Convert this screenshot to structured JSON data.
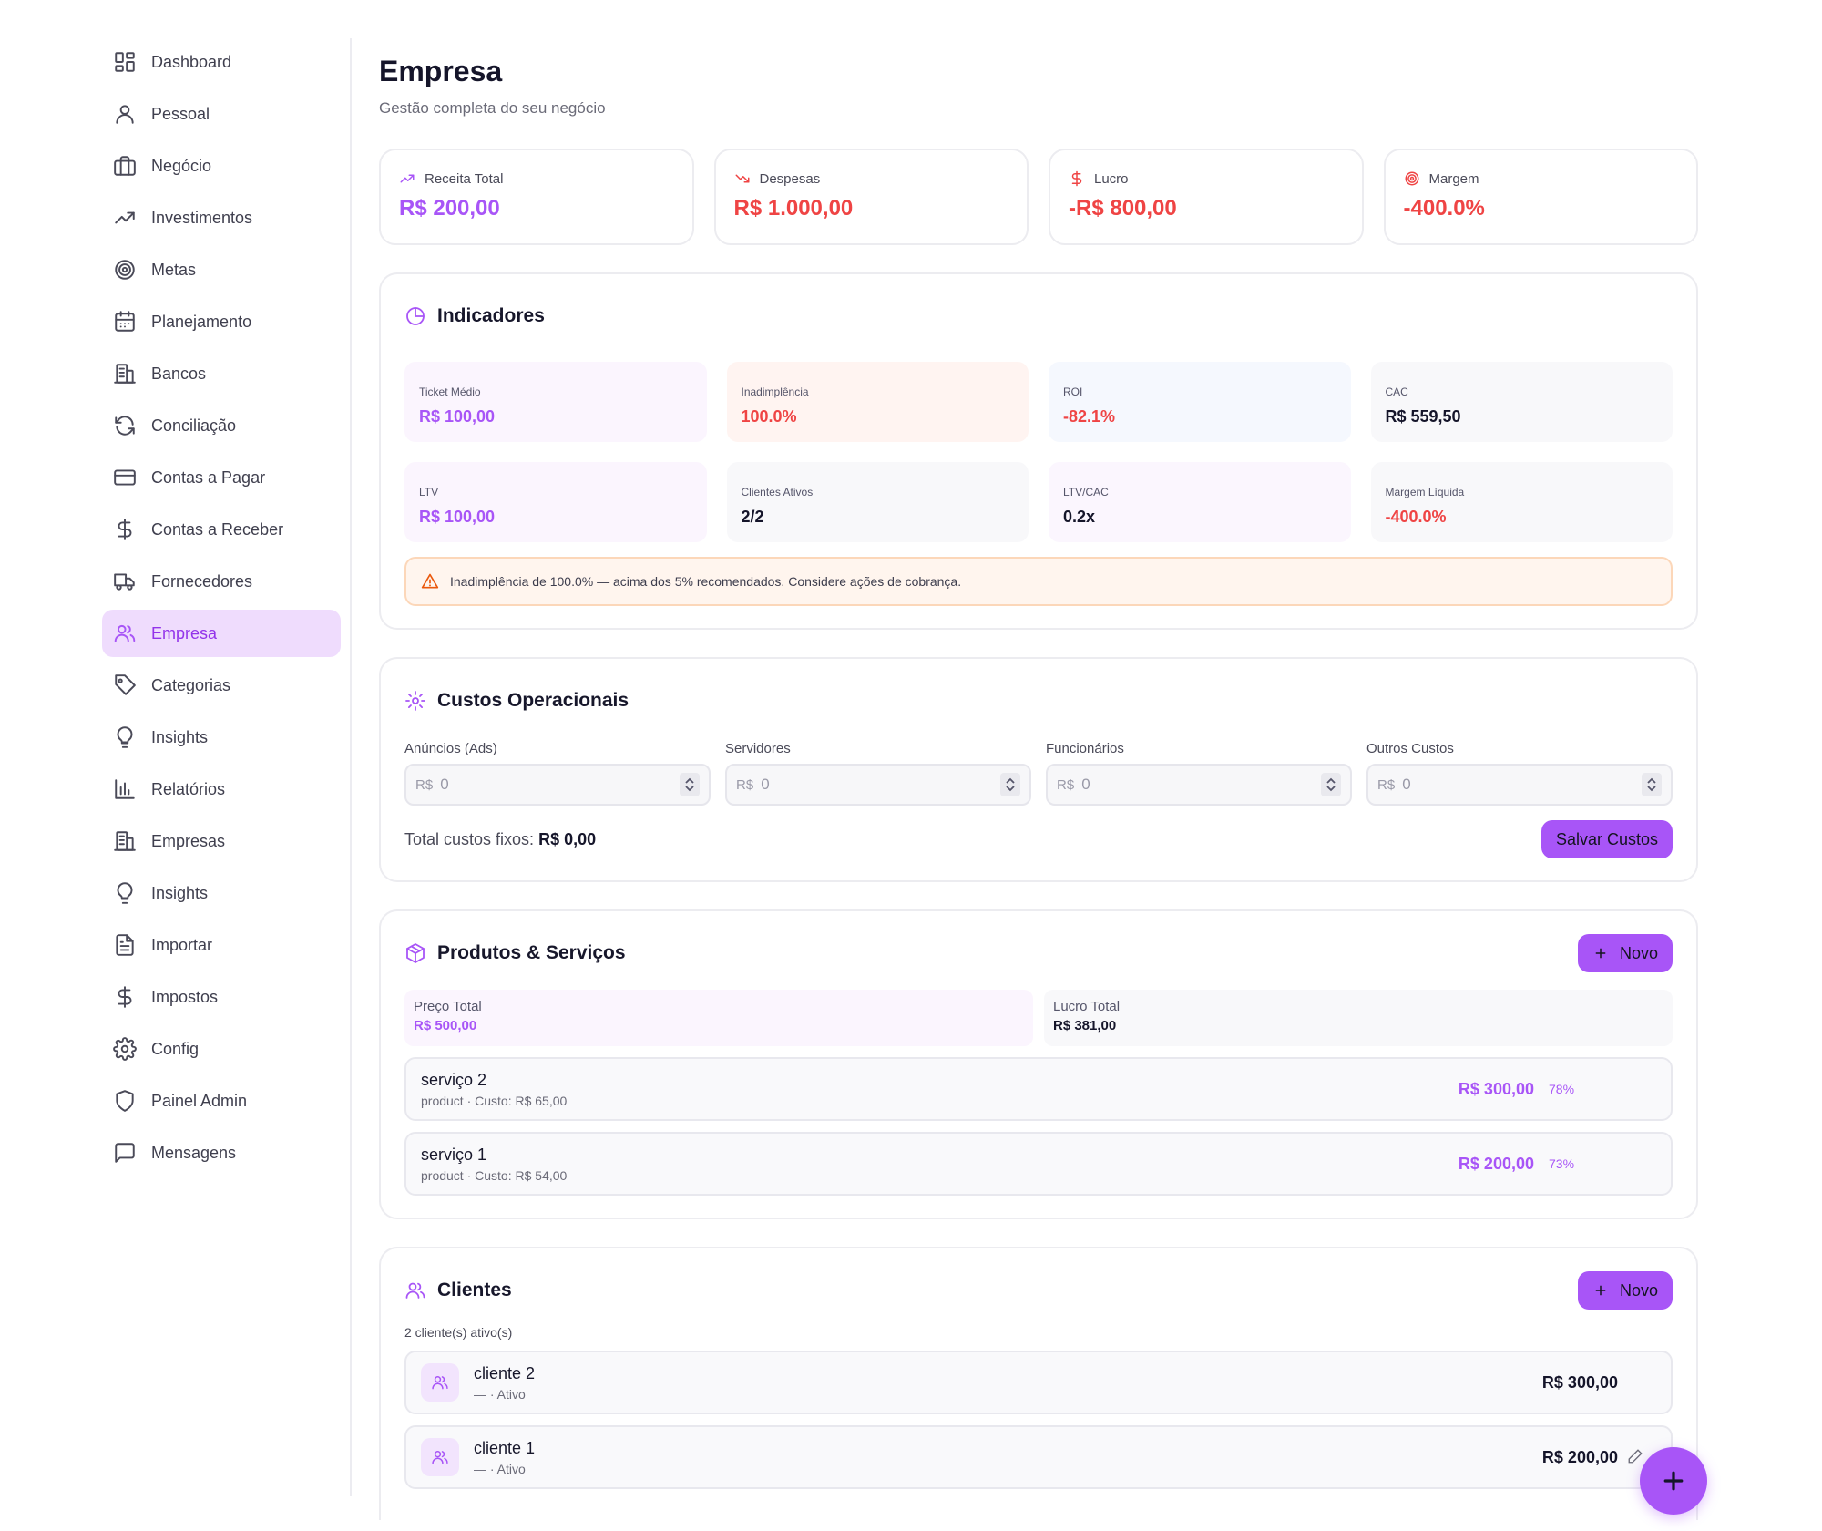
{
  "sidebar": {
    "items": [
      {
        "label": "Dashboard",
        "icon": "dashboard-icon"
      },
      {
        "label": "Pessoal",
        "icon": "user-icon"
      },
      {
        "label": "Negócio",
        "icon": "briefcase-icon"
      },
      {
        "label": "Investimentos",
        "icon": "trending-up-icon"
      },
      {
        "label": "Metas",
        "icon": "target-icon"
      },
      {
        "label": "Planejamento",
        "icon": "calendar-icon"
      },
      {
        "label": "Bancos",
        "icon": "building-icon"
      },
      {
        "label": "Conciliação",
        "icon": "refresh-icon"
      },
      {
        "label": "Contas a Pagar",
        "icon": "credit-card-icon"
      },
      {
        "label": "Contas a Receber",
        "icon": "dollar-icon"
      },
      {
        "label": "Fornecedores",
        "icon": "truck-icon"
      },
      {
        "label": "Empresa",
        "icon": "users-icon",
        "active": true
      },
      {
        "label": "Categorias",
        "icon": "tag-icon"
      },
      {
        "label": "Insights",
        "icon": "lightbulb-icon"
      },
      {
        "label": "Relatórios",
        "icon": "bar-chart-icon"
      },
      {
        "label": "Empresas",
        "icon": "building-icon"
      },
      {
        "label": "Insights",
        "icon": "lightbulb-icon"
      },
      {
        "label": "Importar",
        "icon": "file-icon"
      },
      {
        "label": "Impostos",
        "icon": "dollar-icon"
      },
      {
        "label": "Config",
        "icon": "gear-icon"
      },
      {
        "label": "Painel Admin",
        "icon": "shield-icon"
      },
      {
        "label": "Mensagens",
        "icon": "message-icon"
      }
    ]
  },
  "header": {
    "title": "Empresa",
    "subtitle": "Gestão completa do seu negócio"
  },
  "kpis": [
    {
      "label": "Receita Total",
      "value": "R$ 200,00",
      "icon": "trending-up-icon",
      "color": "#a855f7"
    },
    {
      "label": "Despesas",
      "value": "R$ 1.000,00",
      "icon": "trending-down-icon",
      "color": "#ef4444"
    },
    {
      "label": "Lucro",
      "value": "-R$ 800,00",
      "icon": "dollar-icon",
      "color": "#ef4444"
    },
    {
      "label": "Margem",
      "value": "-400.0%",
      "icon": "target-icon",
      "color": "#ef4444"
    }
  ],
  "indicadores": {
    "title": "Indicadores",
    "items": [
      {
        "label": "Ticket Médio",
        "value": "R$ 100,00",
        "bg": "#fbf5fe",
        "color": "#a855f7"
      },
      {
        "label": "Inadimplência",
        "value": "100.0%",
        "bg": "#fff4f1",
        "color": "#ef4444"
      },
      {
        "label": "ROI",
        "value": "-82.1%",
        "bg": "#f5f8fe",
        "color": "#ef4444"
      },
      {
        "label": "CAC",
        "value": "R$ 559,50",
        "bg": "#f8f8fa",
        "color": "#15152a"
      },
      {
        "label": "LTV",
        "value": "R$ 100,00",
        "bg": "#fbf5fe",
        "color": "#a855f7"
      },
      {
        "label": "Clientes Ativos",
        "value": "2/2",
        "bg": "#f8f8fa",
        "color": "#15152a"
      },
      {
        "label": "LTV/CAC",
        "value": "0.2x",
        "bg": "#fbf6fe",
        "color": "#15152a"
      },
      {
        "label": "Margem Líquida",
        "value": "-400.0%",
        "bg": "#f8f8fa",
        "color": "#ef4444"
      }
    ],
    "alert": "Inadimplência de 100.0% — acima dos 5% recomendados. Considere ações de cobrança."
  },
  "custos": {
    "title": "Custos Operacionais",
    "fields": [
      {
        "label": "Anúncios (Ads)",
        "prefix": "R$",
        "value": "0"
      },
      {
        "label": "Servidores",
        "prefix": "R$",
        "value": "0"
      },
      {
        "label": "Funcionários",
        "prefix": "R$",
        "value": "0"
      },
      {
        "label": "Outros Custos",
        "prefix": "R$",
        "value": "0"
      }
    ],
    "total_label": "Total custos fixos:",
    "total_value": "R$ 0,00",
    "save_label": "Salvar Custos"
  },
  "produtos": {
    "title": "Produtos & Serviços",
    "new_label": "Novo",
    "preco_label": "Preço Total",
    "preco_value": "R$ 500,00",
    "lucro_label": "Lucro Total",
    "lucro_value": "R$ 381,00",
    "items": [
      {
        "name": "serviço 2",
        "sub": "product · Custo: R$ 65,00",
        "price": "R$ 300,00",
        "pct": "78%"
      },
      {
        "name": "serviço 1",
        "sub": "product · Custo: R$ 54,00",
        "price": "R$ 200,00",
        "pct": "73%"
      }
    ]
  },
  "clientes": {
    "title": "Clientes",
    "new_label": "Novo",
    "count": "2 cliente(s) ativo(s)",
    "items": [
      {
        "name": "cliente 2",
        "sub": "— · Ativo",
        "value": "R$ 300,00"
      },
      {
        "name": "cliente 1",
        "sub": "— · Ativo",
        "value": "R$ 200,00"
      }
    ]
  }
}
